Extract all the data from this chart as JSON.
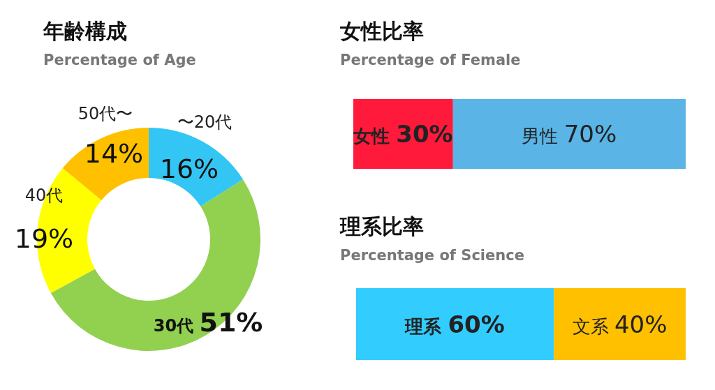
{
  "chart_data": [
    {
      "type": "donut",
      "title": "年齢構成",
      "subtitle": "Percentage of Age",
      "categories": [
        "〜20代",
        "30代",
        "40代",
        "50代〜"
      ],
      "values": [
        16,
        51,
        19,
        14
      ],
      "colors": [
        "#33c6f4",
        "#92d050",
        "#ffff00",
        "#ffc000"
      ],
      "value_labels": [
        "16%",
        "51%",
        "19%",
        "14%"
      ]
    },
    {
      "type": "bar",
      "orientation": "horizontal",
      "stacked": true,
      "title": "女性比率",
      "subtitle": "Percentage of Female",
      "categories": [
        null
      ],
      "xlim": [
        0,
        100
      ],
      "tick_labels": false,
      "series": [
        {
          "name": "女性",
          "color": "#ff1a3c",
          "values": [
            30
          ],
          "value_labels": [
            "30%"
          ]
        },
        {
          "name": "男性",
          "color": "#5ab4e6",
          "values": [
            70
          ],
          "value_labels": [
            "70%"
          ]
        }
      ]
    },
    {
      "type": "bar",
      "orientation": "horizontal",
      "stacked": true,
      "title": "理系比率",
      "subtitle": "Percentage of Science",
      "categories": [
        null
      ],
      "xlim": [
        0,
        100
      ],
      "tick_labels": false,
      "series": [
        {
          "name": "理系",
          "color": "#33ccff",
          "values": [
            60
          ],
          "value_labels": [
            "60%"
          ]
        },
        {
          "name": "文系",
          "color": "#ffc000",
          "values": [
            40
          ],
          "value_labels": [
            "40%"
          ]
        }
      ]
    }
  ]
}
